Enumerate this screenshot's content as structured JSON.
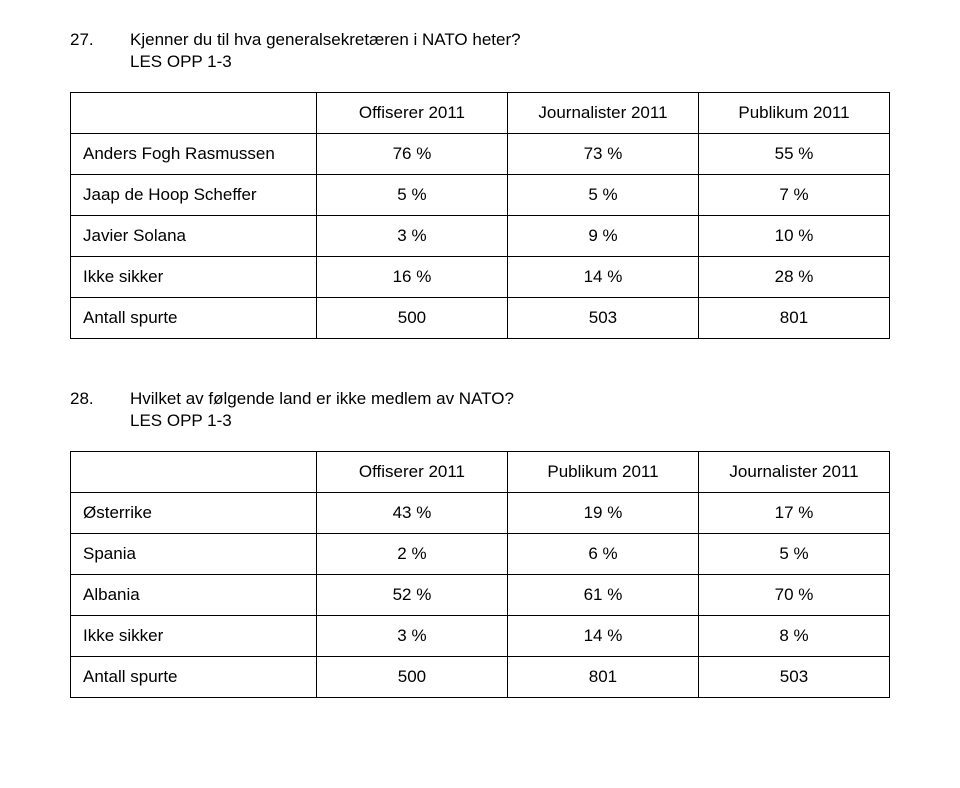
{
  "q27": {
    "number": "27.",
    "text": "Kjenner du til hva generalsekretæren i NATO heter?",
    "sub": "LES OPP 1-3",
    "table": {
      "headers": [
        "",
        "Offiserer 2011",
        "Journalister 2011",
        "Publikum 2011"
      ],
      "rows": [
        [
          "Anders Fogh Rasmussen",
          "76 %",
          "73 %",
          "55 %"
        ],
        [
          "Jaap de Hoop Scheffer",
          "5 %",
          "5 %",
          "7 %"
        ],
        [
          "Javier Solana",
          "3 %",
          "9 %",
          "10 %"
        ],
        [
          "Ikke sikker",
          "16 %",
          "14 %",
          "28 %"
        ],
        [
          "Antall spurte",
          "500",
          "503",
          "801"
        ]
      ]
    }
  },
  "q28": {
    "number": "28.",
    "text": "Hvilket av følgende land er ikke medlem av NATO?",
    "sub": "LES OPP 1-3",
    "table": {
      "headers": [
        "",
        "Offiserer 2011",
        "Publikum 2011",
        "Journalister 2011"
      ],
      "rows": [
        [
          "Østerrike",
          "43 %",
          "19 %",
          "17 %"
        ],
        [
          "Spania",
          "2 %",
          "6 %",
          "5 %"
        ],
        [
          "Albania",
          "52 %",
          "61 %",
          "70 %"
        ],
        [
          "Ikke sikker",
          "3 %",
          "14 %",
          "8 %"
        ],
        [
          "Antall spurte",
          "500",
          "801",
          "503"
        ]
      ]
    }
  }
}
